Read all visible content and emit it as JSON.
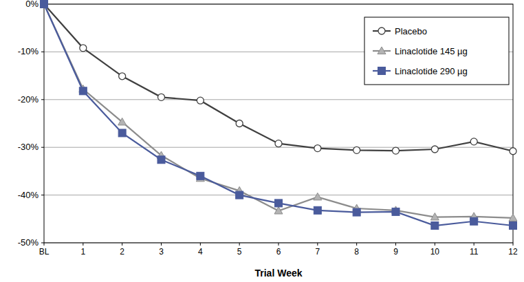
{
  "chart_data": {
    "type": "line",
    "x_label": "Trial Week",
    "categories": [
      "BL",
      "1",
      "2",
      "3",
      "4",
      "5",
      "6",
      "7",
      "8",
      "9",
      "10",
      "11",
      "12"
    ],
    "series": [
      {
        "name": "Placebo",
        "color": "#404040",
        "marker": "circle",
        "values": [
          0,
          -9.2,
          -15.1,
          -19.5,
          -20.2,
          -25.0,
          -29.2,
          -30.2,
          -30.6,
          -30.7,
          -30.4,
          -28.8,
          -30.8
        ]
      },
      {
        "name": "Linaclotide 145 µg",
        "color": "#8c8c8c",
        "marker": "triangle",
        "values": [
          0,
          -17.8,
          -24.7,
          -31.7,
          -36.5,
          -39.1,
          -43.3,
          -40.4,
          -42.8,
          -43.2,
          -44.6,
          -44.5,
          -44.8
        ]
      },
      {
        "name": "Linaclotide 290 µg",
        "color": "#4a5b9c",
        "marker": "square",
        "values": [
          0,
          -18.2,
          -27.0,
          -32.6,
          -36.0,
          -40.0,
          -41.7,
          -43.2,
          -43.6,
          -43.5,
          -46.4,
          -45.5,
          -46.4
        ]
      }
    ],
    "ylim": [
      -50,
      0
    ],
    "yticks": [
      {
        "value": 0,
        "label": "0%"
      },
      {
        "value": -10,
        "label": "-10%"
      },
      {
        "value": -20,
        "label": "-20%"
      },
      {
        "value": -30,
        "label": "-30%"
      },
      {
        "value": -40,
        "label": "-40%"
      },
      {
        "value": -50,
        "label": "-50%"
      }
    ],
    "grid": true,
    "legend": "top-right"
  }
}
